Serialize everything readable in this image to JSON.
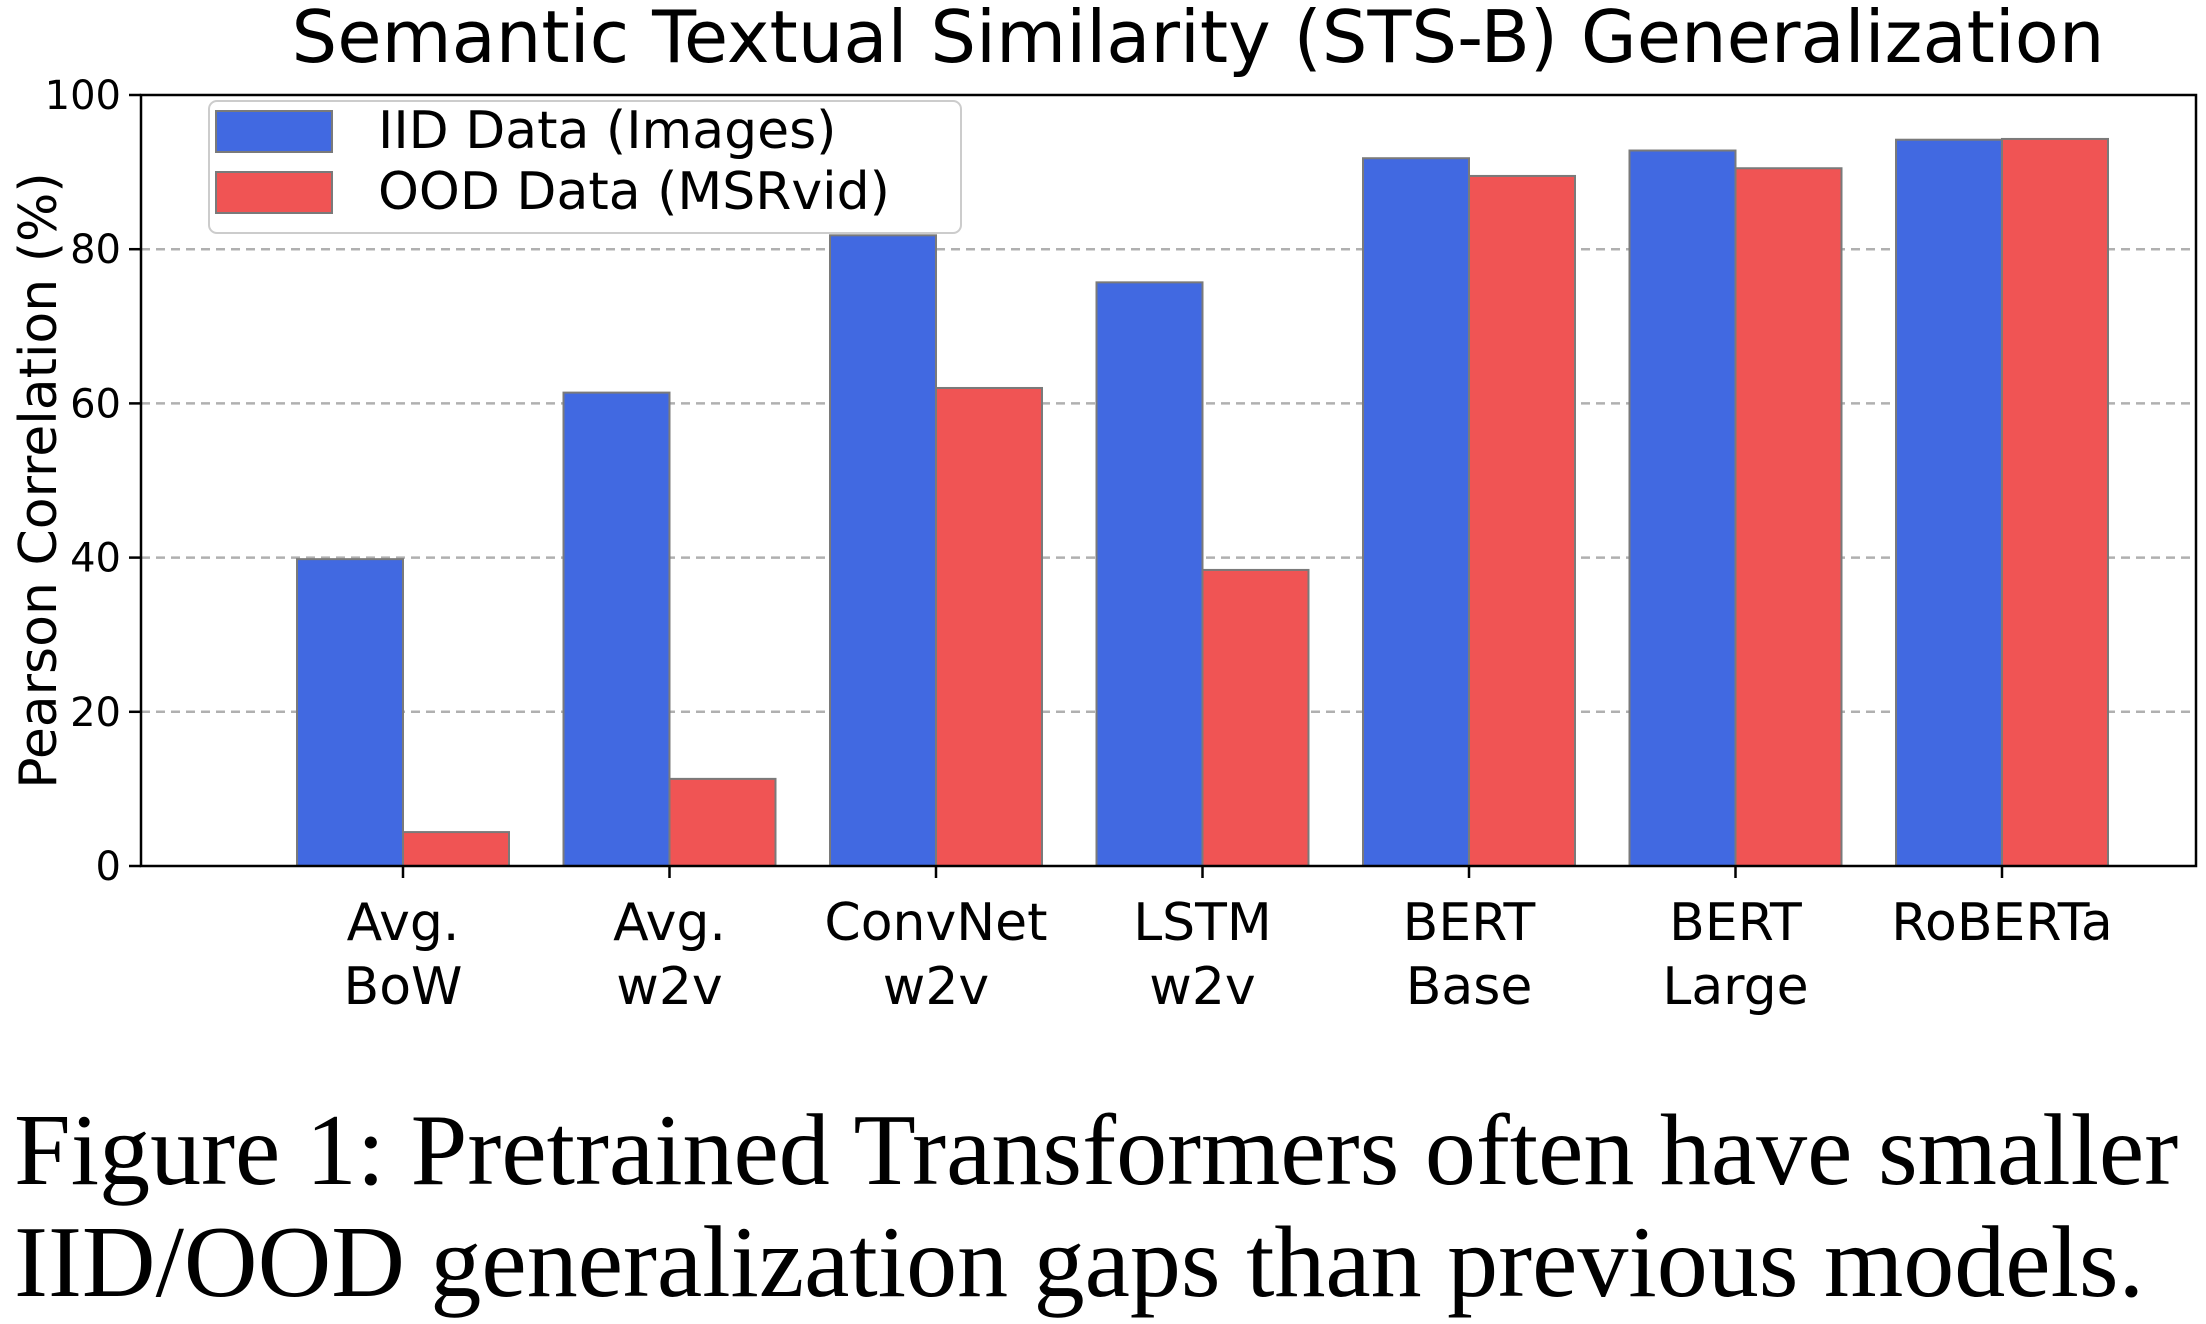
{
  "chart_data": {
    "type": "bar",
    "title": "Semantic Textual Similarity (STS-B) Generalization",
    "xlabel": "",
    "ylabel": "Pearson Correlation (%)",
    "ylim": [
      0,
      100
    ],
    "yticks": [
      "0",
      "20",
      "40",
      "60",
      "80",
      "100"
    ],
    "grid": "horizontal dashed",
    "legend_position": "top-left",
    "categories": [
      [
        "Avg.",
        "BoW"
      ],
      [
        "Avg.",
        "w2v"
      ],
      [
        "ConvNet",
        "w2v"
      ],
      [
        "LSTM",
        "w2v"
      ],
      [
        "BERT",
        "Base"
      ],
      [
        "BERT",
        "Large"
      ],
      [
        "RoBERTa",
        ""
      ]
    ],
    "series": [
      {
        "name": "IID Data (Images)",
        "color": "#4169E1",
        "values": [
          39.8,
          61.4,
          81.8,
          75.7,
          91.8,
          92.8,
          94.2
        ]
      },
      {
        "name": "OOD Data (MSRvid)",
        "color": "#F05454",
        "values": [
          4.4,
          11.3,
          62.0,
          38.4,
          89.5,
          90.5,
          94.3
        ]
      }
    ]
  },
  "caption": {
    "line1": "Figure 1:  Pretrained Transformers often have smaller",
    "line2": "IID/OOD generalization gaps than previous models."
  }
}
